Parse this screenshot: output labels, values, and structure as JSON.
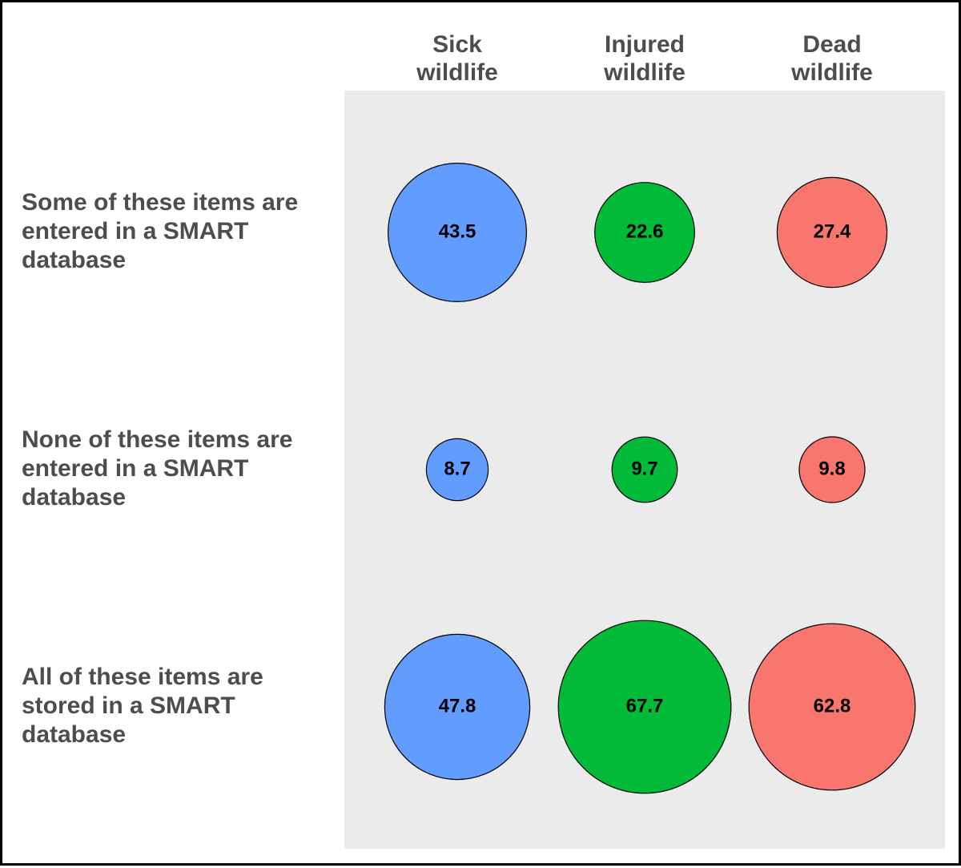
{
  "chart_data": {
    "type": "bubble",
    "columns": [
      {
        "label_lines": [
          "Sick",
          "wildlife"
        ],
        "color": "#619cff"
      },
      {
        "label_lines": [
          "Injured",
          "wildlife"
        ],
        "color": "#00ba38"
      },
      {
        "label_lines": [
          "Dead",
          "wildlife"
        ],
        "color": "#f8766d"
      }
    ],
    "rows": [
      {
        "label_lines": [
          "Some of these items are",
          "entered in a SMART",
          "database"
        ]
      },
      {
        "label_lines": [
          "None of these items are",
          "entered in a SMART",
          "database"
        ]
      },
      {
        "label_lines": [
          "All of these items are",
          "stored in a SMART",
          "database"
        ]
      }
    ],
    "values": [
      [
        43.5,
        22.6,
        27.4
      ],
      [
        8.7,
        9.7,
        9.8
      ],
      [
        47.8,
        67.7,
        62.8
      ]
    ],
    "value_labels": [
      [
        "43.5",
        "22.6",
        "27.4"
      ],
      [
        "8.7",
        "9.7",
        "9.8"
      ],
      [
        "47.8",
        "67.7",
        "62.8"
      ]
    ],
    "panel_background": "#ebebeb",
    "label_color": "#4d4d4d"
  }
}
